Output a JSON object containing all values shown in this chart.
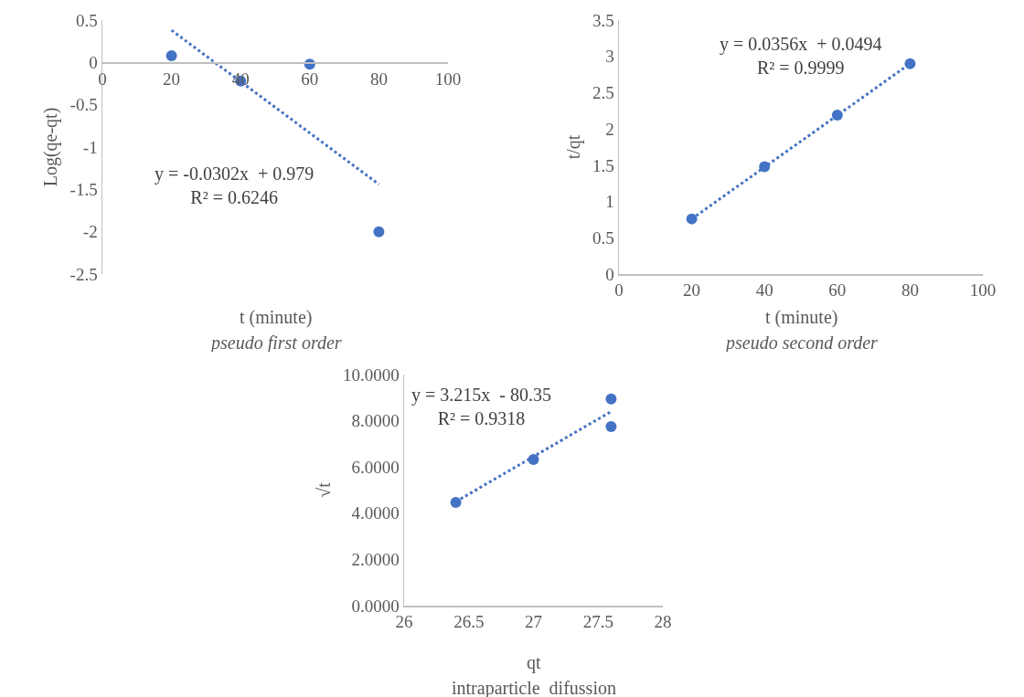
{
  "chart_data": [
    {
      "type": "scatter",
      "xlabel": "t (minute)",
      "ylabel": "Log(qe-qt)",
      "subtitle": "pseudo first order",
      "annotations": [
        "y = -0.0302x  + 0.979\nR² = 0.6246"
      ],
      "xlim": [
        0,
        100
      ],
      "xticks": [
        0,
        20,
        40,
        60,
        80,
        100
      ],
      "ylim": [
        -2.5,
        0.5
      ],
      "yticks": [
        -2.5,
        -2,
        -1.5,
        -1,
        -0.5,
        0,
        0.5
      ],
      "grid": false,
      "marker": "circle",
      "series": [
        {
          "type": "scatter",
          "color": "#4472c4",
          "x": [
            20,
            40,
            60,
            80
          ],
          "values": [
            0.08,
            -0.22,
            -0.02,
            -2.0
          ]
        },
        {
          "type": "line",
          "color": "#4472c4",
          "line_style": "dotted",
          "marker": "none",
          "x": [
            20,
            80
          ],
          "values": [
            0.38,
            -1.44
          ]
        }
      ]
    },
    {
      "type": "scatter",
      "xlabel": "t (minute)",
      "ylabel": "t/qt",
      "subtitle": "pseudo second order",
      "annotations": [
        "y = 0.0356x  + 0.0494\nR² = 0.9999"
      ],
      "xlim": [
        0,
        100
      ],
      "xticks": [
        0,
        20,
        40,
        60,
        80,
        100
      ],
      "ylim": [
        0,
        3.5
      ],
      "yticks": [
        0,
        0.5,
        1,
        1.5,
        2,
        2.5,
        3,
        3.5
      ],
      "grid": false,
      "marker": "circle",
      "series": [
        {
          "type": "scatter",
          "color": "#4472c4",
          "x": [
            20,
            40,
            60,
            80
          ],
          "values": [
            0.76,
            1.48,
            2.19,
            2.9
          ]
        },
        {
          "type": "line",
          "color": "#4472c4",
          "line_style": "dotted",
          "marker": "none",
          "x": [
            20,
            80
          ],
          "values": [
            0.76,
            2.9
          ]
        }
      ]
    },
    {
      "type": "scatter",
      "xlabel": "qt",
      "ylabel": "√t",
      "subtitle": "intraparticle  difussion",
      "annotations": [
        "y = 3.215x  - 80.35\nR² = 0.9318"
      ],
      "xlim": [
        26,
        28
      ],
      "xticks": [
        26,
        26.5,
        27,
        27.5,
        28
      ],
      "ylim": [
        0,
        10
      ],
      "yticks": [
        {
          "value": 0,
          "label": "0.0000"
        },
        {
          "value": 2,
          "label": "2.0000"
        },
        {
          "value": 4,
          "label": "4.0000"
        },
        {
          "value": 6,
          "label": "6.0000"
        },
        {
          "value": 8,
          "label": "8.0000"
        },
        {
          "value": 10,
          "label": "10.0000"
        }
      ],
      "grid": false,
      "marker": "circle",
      "series": [
        {
          "type": "scatter",
          "color": "#4472c4",
          "x": [
            26.4,
            27.0,
            27.6,
            27.6
          ],
          "values": [
            4.47,
            6.32,
            8.94,
            7.75
          ]
        },
        {
          "type": "line",
          "color": "#4472c4",
          "line_style": "dotted",
          "marker": "none",
          "x": [
            26.4,
            27.6
          ],
          "values": [
            4.5,
            8.4
          ]
        }
      ]
    }
  ]
}
